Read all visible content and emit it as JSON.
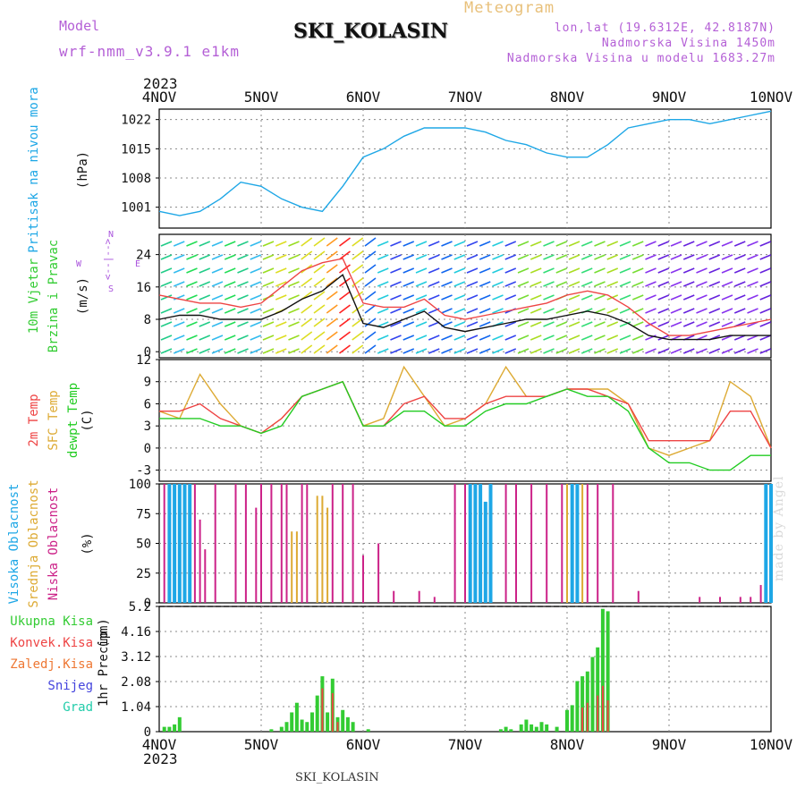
{
  "header": {
    "model_label": "Model",
    "model_value": "wrf-nmm_v3.9.1 e1km",
    "station": "SKI_KOLASIN",
    "chart_title": "Meteogram",
    "coords": "lon,lat (19.6312E, 42.8187N)",
    "elevation": "Nadmorska Visina 1450m",
    "model_elevation": "Nadmorska Visina u modelu 1683.27m"
  },
  "footer": {
    "station": "SKI_KOLASIN",
    "year_top": "2023",
    "year_bottom": "2023",
    "credit": "made by Angel"
  },
  "colors": {
    "pressure": "#1ea7e6",
    "wind_label": "#33cc33",
    "temp_2m": "#ee4444",
    "temp_sfc": "#ddaa33",
    "dewpoint": "#22cc22",
    "cloud_high": "#1ea7e6",
    "cloud_mid": "#ddaa33",
    "cloud_low": "#cc2288",
    "precip_total": "#33cc33",
    "precip_conv": "#ee4444",
    "precip_frozen": "#ee7733",
    "snow": "#4444dd",
    "hail": "#22ccaa",
    "compass": "#aa55dd"
  },
  "chart_data": [
    {
      "type": "line",
      "panel": "pressure",
      "ylabels": [
        "Pritisak na nivou mora",
        "(hPa)"
      ],
      "x_categories": [
        "4NOV",
        "5NOV",
        "6NOV",
        "7NOV",
        "8NOV",
        "9NOV",
        "10NOV"
      ],
      "yticks": [
        1001,
        1008,
        1015,
        1022
      ],
      "ylim": [
        996,
        1024.5
      ],
      "series": [
        {
          "x": [
            0,
            0.2,
            0.4,
            0.6,
            0.8,
            1.0,
            1.2,
            1.4,
            1.6,
            1.8,
            2.0,
            2.2,
            2.4,
            2.6,
            2.8,
            3.0,
            3.2,
            3.4,
            3.6,
            3.8,
            4.0,
            4.2,
            4.4,
            4.6,
            4.8,
            5.0,
            5.2,
            5.4,
            5.6,
            5.8,
            6.0
          ],
          "y": [
            1000,
            999,
            1000,
            1003,
            1007,
            1006,
            1003,
            1001,
            1000,
            1006,
            1013,
            1015,
            1018,
            1020,
            1020,
            1020,
            1019,
            1017,
            1016,
            1014,
            1013,
            1013,
            1016,
            1020,
            1021,
            1022,
            1022,
            1021,
            1022,
            1023,
            1024
          ]
        }
      ]
    },
    {
      "type": "line",
      "panel": "wind",
      "ylabels": [
        "10m Vjetar",
        "Brzina i Pravac",
        "(m/s)"
      ],
      "yticks": [
        0,
        8,
        16,
        24
      ],
      "ylim": [
        -1.5,
        29
      ],
      "compass": [
        "N",
        "W",
        "E",
        "S"
      ],
      "series": [
        {
          "name": "speed",
          "x": [
            0,
            0.2,
            0.4,
            0.6,
            0.8,
            1.0,
            1.2,
            1.4,
            1.6,
            1.8,
            2.0,
            2.2,
            2.4,
            2.6,
            2.8,
            3.0,
            3.2,
            3.4,
            3.6,
            3.8,
            4.0,
            4.2,
            4.4,
            4.6,
            4.8,
            5.0,
            5.2,
            5.4,
            5.6,
            5.8,
            6.0
          ],
          "y": [
            8,
            9,
            9,
            8,
            8,
            8,
            10,
            13,
            15,
            19,
            7,
            6,
            8,
            10,
            6,
            5,
            6,
            7,
            8,
            8,
            9,
            10,
            9,
            7,
            4,
            3,
            3,
            3,
            4,
            4,
            4
          ]
        },
        {
          "name": "gust",
          "x": [
            0,
            0.2,
            0.4,
            0.6,
            0.8,
            1.0,
            1.2,
            1.4,
            1.6,
            1.8,
            2.0,
            2.2,
            2.4,
            2.6,
            2.8,
            3.0,
            3.2,
            3.4,
            3.6,
            3.8,
            4.0,
            4.2,
            4.4,
            4.6,
            4.8,
            5.0,
            5.2,
            5.4,
            5.6,
            5.8,
            6.0
          ],
          "y": [
            14,
            13,
            12,
            12,
            11,
            12,
            16,
            20,
            22,
            23,
            12,
            11,
            11,
            13,
            9,
            8,
            9,
            10,
            11,
            12,
            14,
            15,
            14,
            11,
            7,
            4,
            4,
            5,
            6,
            7,
            8
          ]
        }
      ]
    },
    {
      "type": "line",
      "panel": "temperature",
      "ylabels": [
        "2m Temp",
        "SFC Temp",
        "dewpt Temp",
        "(C)"
      ],
      "yticks": [
        -3,
        0,
        3,
        6,
        9,
        12
      ],
      "ylim": [
        -4.5,
        12
      ],
      "series": [
        {
          "name": "2m Temp",
          "x": [
            0,
            0.2,
            0.4,
            0.6,
            0.8,
            1.0,
            1.2,
            1.4,
            1.6,
            1.8,
            2.0,
            2.2,
            2.4,
            2.6,
            2.8,
            3.0,
            3.2,
            3.4,
            3.6,
            3.8,
            4.0,
            4.2,
            4.4,
            4.6,
            4.8,
            5.0,
            5.2,
            5.4,
            5.6,
            5.8,
            6.0
          ],
          "y": [
            5,
            5,
            6,
            4,
            3,
            2,
            4,
            7,
            8,
            9,
            3,
            3,
            6,
            7,
            4,
            4,
            6,
            7,
            7,
            7,
            8,
            8,
            7,
            6,
            1,
            1,
            1,
            1,
            5,
            5,
            0
          ]
        },
        {
          "name": "SFC Temp",
          "x": [
            0,
            0.2,
            0.4,
            0.6,
            0.8,
            1.0,
            1.2,
            1.4,
            1.6,
            1.8,
            2.0,
            2.2,
            2.4,
            2.6,
            2.8,
            3.0,
            3.2,
            3.4,
            3.6,
            3.8,
            4.0,
            4.2,
            4.4,
            4.6,
            4.8,
            5.0,
            5.2,
            5.4,
            5.6,
            5.8,
            6.0
          ],
          "y": [
            5,
            4,
            10,
            6,
            3,
            2,
            4,
            7,
            8,
            9,
            3,
            4,
            11,
            7,
            3,
            4,
            6,
            11,
            7,
            7,
            8,
            8,
            8,
            6,
            0,
            -1,
            0,
            1,
            9,
            7,
            0
          ]
        },
        {
          "name": "dewpt Temp",
          "x": [
            0,
            0.2,
            0.4,
            0.6,
            0.8,
            1.0,
            1.2,
            1.4,
            1.6,
            1.8,
            2.0,
            2.2,
            2.4,
            2.6,
            2.8,
            3.0,
            3.2,
            3.4,
            3.6,
            3.8,
            4.0,
            4.2,
            4.4,
            4.6,
            4.8,
            5.0,
            5.2,
            5.4,
            5.6,
            5.8,
            6.0
          ],
          "y": [
            4,
            4,
            4,
            3,
            3,
            2,
            3,
            7,
            8,
            9,
            3,
            3,
            5,
            5,
            3,
            3,
            5,
            6,
            6,
            7,
            8,
            7,
            7,
            5,
            0,
            -2,
            -2,
            -3,
            -3,
            -1,
            -1
          ]
        }
      ]
    },
    {
      "type": "bar",
      "panel": "clouds",
      "ylabels": [
        "Visoka Oblacnost",
        "Srednja Oblacnost",
        "Niska Oblacnost",
        "(%)"
      ],
      "yticks": [
        0,
        25,
        50,
        75,
        100
      ],
      "ylim": [
        0,
        100
      ],
      "high_x": [
        0.1,
        0.15,
        0.2,
        0.25,
        0.3,
        3.05,
        3.1,
        3.15,
        3.2,
        3.25,
        4.05,
        4.1,
        5.95,
        6.0
      ],
      "high_y": [
        100,
        100,
        100,
        100,
        100,
        100,
        100,
        100,
        85,
        100,
        100,
        100,
        100,
        100
      ],
      "mid_x": [
        0.15,
        0.2,
        0.25,
        1.3,
        1.35,
        1.55,
        1.6,
        1.65,
        4.0,
        4.05,
        4.1,
        4.15
      ],
      "mid_y": [
        90,
        80,
        70,
        60,
        60,
        90,
        90,
        80,
        100,
        100,
        100,
        100
      ],
      "low_x": [
        0.05,
        0.35,
        0.4,
        0.45,
        0.55,
        0.75,
        0.85,
        0.95,
        1.0,
        1.1,
        1.2,
        1.25,
        1.4,
        1.45,
        1.7,
        1.8,
        1.9,
        2.0,
        2.15,
        2.3,
        2.55,
        2.7,
        2.9,
        3.0,
        3.4,
        3.5,
        3.65,
        3.8,
        3.95,
        4.2,
        4.3,
        4.45,
        4.7,
        5.3,
        5.5,
        5.7,
        5.8,
        5.9
      ],
      "low_y": [
        100,
        100,
        70,
        45,
        100,
        100,
        100,
        80,
        100,
        100,
        100,
        100,
        100,
        100,
        100,
        100,
        100,
        40,
        50,
        10,
        10,
        5,
        100,
        100,
        100,
        100,
        100,
        100,
        100,
        100,
        100,
        100,
        10,
        5,
        5,
        5,
        5,
        15
      ]
    },
    {
      "type": "bar",
      "panel": "precipitation",
      "ylabels": [
        "1hr Precip",
        "(mm)"
      ],
      "legend": [
        "Ukupna Kisa",
        "Konvek.Kisa",
        "Zaledj.Kisa",
        "Snijeg",
        "Grad"
      ],
      "yticks": [
        0,
        1.04,
        2.08,
        3.12,
        4.16,
        5.2
      ],
      "ylim": [
        0,
        5.2
      ],
      "x_categories": [
        "4NOV",
        "5NOV",
        "6NOV",
        "7NOV",
        "8NOV",
        "9NOV",
        "10NOV"
      ],
      "total_x": [
        0.05,
        0.1,
        0.15,
        0.2,
        1.1,
        1.2,
        1.25,
        1.3,
        1.35,
        1.4,
        1.45,
        1.5,
        1.55,
        1.6,
        1.65,
        1.7,
        1.75,
        1.8,
        1.85,
        1.9,
        2.05,
        3.35,
        3.4,
        3.45,
        3.55,
        3.6,
        3.65,
        3.7,
        3.75,
        3.8,
        3.9,
        4.0,
        4.05,
        4.1,
        4.15,
        4.2,
        4.25,
        4.3,
        4.35,
        4.4
      ],
      "total_y": [
        0.2,
        0.2,
        0.3,
        0.6,
        0.1,
        0.2,
        0.4,
        0.8,
        1.2,
        0.5,
        0.4,
        0.8,
        1.5,
        2.3,
        0.8,
        2.2,
        0.6,
        0.9,
        0.6,
        0.4,
        0.1,
        0.1,
        0.2,
        0.1,
        0.3,
        0.5,
        0.3,
        0.2,
        0.4,
        0.3,
        0.2,
        0.9,
        1.1,
        2.1,
        2.3,
        2.5,
        3.1,
        3.5,
        5.1,
        5.0
      ],
      "conv_x": [
        1.6,
        1.7,
        1.75,
        4.15,
        4.2,
        4.3,
        4.35,
        4.4
      ],
      "conv_y": [
        1.8,
        1.6,
        0.4,
        1.0,
        1.2,
        1.5,
        1.9,
        1.3
      ]
    }
  ]
}
